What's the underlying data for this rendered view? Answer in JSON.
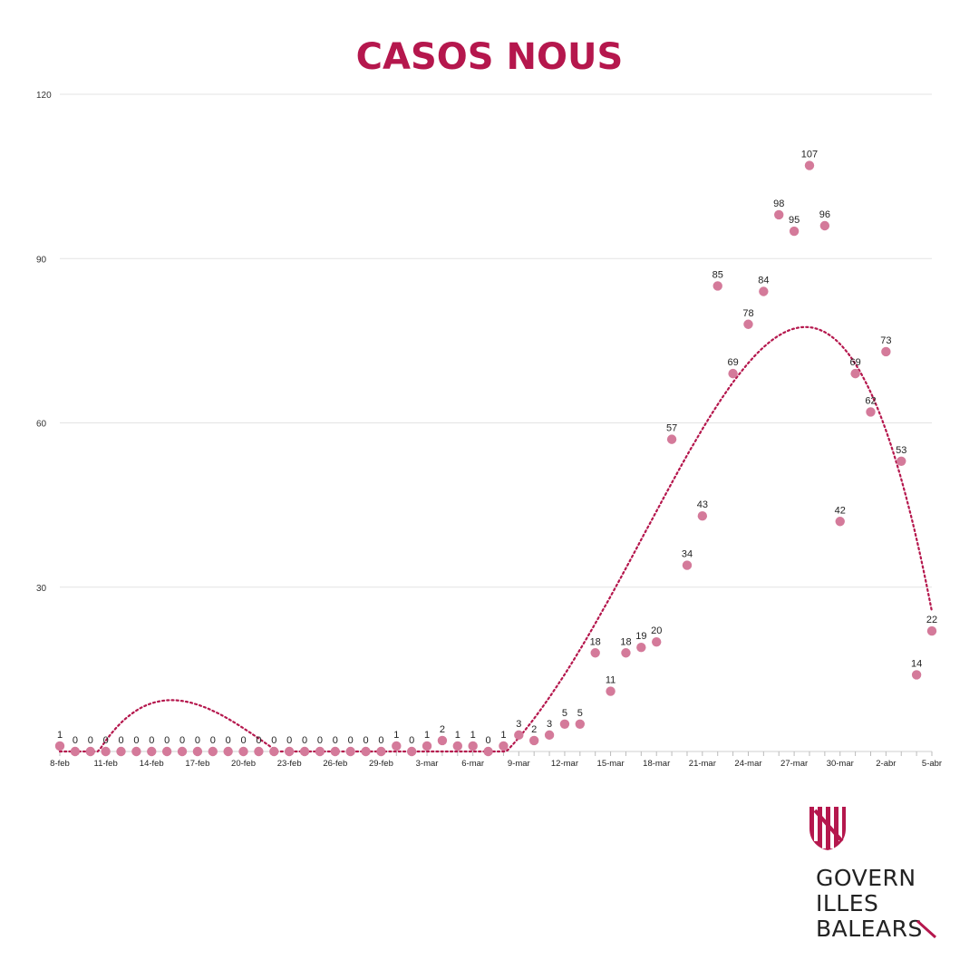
{
  "chart_data": {
    "type": "scatter",
    "title": "CASOS NOUS",
    "xlabel": "",
    "ylabel": "",
    "ylim": [
      0,
      120
    ],
    "y_ticks": [
      30,
      60,
      90,
      120
    ],
    "grid": true,
    "trendline": {
      "style": "dotted",
      "type": "polynomial",
      "color": "#b5174d"
    },
    "tick_labels": [
      "8-feb",
      "11-feb",
      "14-feb",
      "17-feb",
      "20-feb",
      "23-feb",
      "26-feb",
      "29-feb",
      "3-mar",
      "6-mar",
      "9-mar",
      "12-mar",
      "15-mar",
      "18-mar",
      "21-mar",
      "24-mar",
      "27-mar",
      "30-mar",
      "2-abr",
      "5-abr"
    ],
    "x": [
      "8-feb",
      "9-feb",
      "10-feb",
      "11-feb",
      "12-feb",
      "13-feb",
      "14-feb",
      "15-feb",
      "16-feb",
      "17-feb",
      "18-feb",
      "19-feb",
      "20-feb",
      "21-feb",
      "22-feb",
      "23-feb",
      "24-feb",
      "25-feb",
      "26-feb",
      "27-feb",
      "28-feb",
      "29-feb",
      "1-mar",
      "2-mar",
      "3-mar",
      "4-mar",
      "5-mar",
      "6-mar",
      "7-mar",
      "8-mar",
      "9-mar",
      "10-mar",
      "11-mar",
      "12-mar",
      "13-mar",
      "14-mar",
      "15-mar",
      "16-mar",
      "17-mar",
      "18-mar",
      "19-mar",
      "20-mar",
      "21-mar",
      "22-mar",
      "23-mar",
      "24-mar",
      "25-mar",
      "26-mar",
      "27-mar",
      "28-mar",
      "29-mar",
      "30-mar",
      "31-mar",
      "1-abr",
      "2-abr",
      "3-abr",
      "4-abr",
      "5-abr"
    ],
    "values": [
      1,
      0,
      0,
      0,
      0,
      0,
      0,
      0,
      0,
      0,
      0,
      0,
      0,
      0,
      0,
      0,
      0,
      0,
      0,
      0,
      0,
      0,
      1,
      0,
      1,
      2,
      1,
      1,
      0,
      1,
      3,
      2,
      3,
      5,
      5,
      18,
      11,
      18,
      19,
      20,
      57,
      34,
      43,
      85,
      69,
      78,
      84,
      98,
      95,
      107,
      96,
      42,
      69,
      62,
      73,
      53,
      14,
      22
    ],
    "point_color": "#d47a9a"
  },
  "logo": {
    "line1": "GOVERN",
    "line2": "ILLES",
    "line3": "BALEARS"
  }
}
